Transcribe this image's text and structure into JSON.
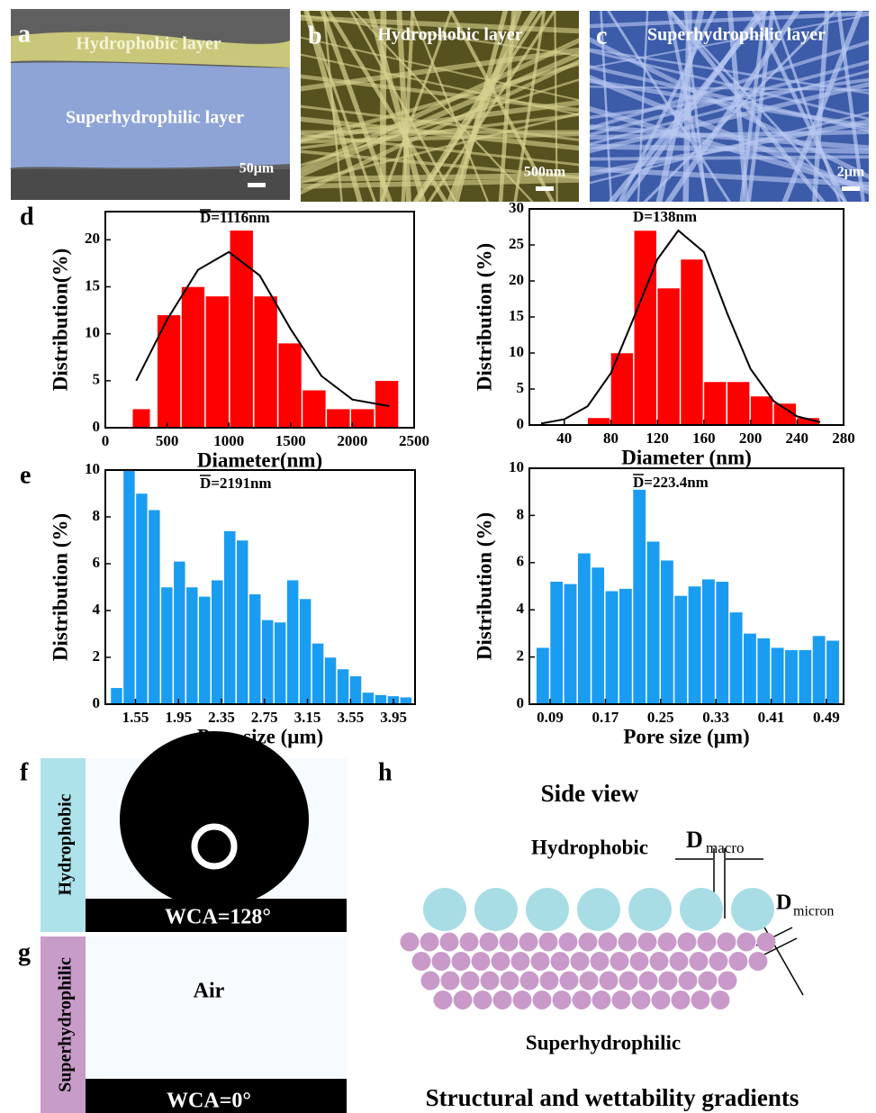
{
  "panel_labels": [
    "a",
    "b",
    "c",
    "d",
    "e",
    "f",
    "g",
    "h"
  ],
  "images": {
    "a": {
      "labels": [
        "Hydrophobic layer",
        "Superhydrophilic layer"
      ],
      "scale_bar": "50μm"
    },
    "b": {
      "labels": [
        "Hydrophobic layer"
      ],
      "scale_bar": "500nm"
    },
    "c": {
      "labels": [
        "Superhydrophilic layer"
      ],
      "scale_bar": "2μm"
    }
  },
  "contact_angle": {
    "f": {
      "side_label": "Hydrophobic",
      "result": "WCA=128°"
    },
    "g": {
      "side_label": "Superhydrophilic",
      "medium": "Air",
      "result": "WCA=0°"
    }
  },
  "schematic": {
    "title": "Side view",
    "top_layer": "Hydrophobic",
    "macro_symbol": "D",
    "macro_subscript": "macro",
    "micron_symbol": "D",
    "micron_subscript": "micron",
    "bottom_layer": "Superhydrophilic",
    "caption": "Structural and wettability gradients"
  },
  "chart_data": [
    {
      "type": "histogram",
      "annotation": "D=1116nm",
      "x_label": "Diameter(nm)",
      "y_label": "Distribution(%)",
      "color": "#ff0000",
      "bins": [
        220,
        370,
        420,
        616,
        812,
        1008,
        1204,
        1400,
        1596,
        1792,
        1988,
        2184,
        2380
      ],
      "values": [
        2,
        0,
        12,
        15,
        14,
        21,
        14,
        9,
        4,
        2,
        2,
        5
      ],
      "fit": {
        "color": "#000000",
        "x": [
          250,
          500,
          750,
          1000,
          1250,
          1500,
          1750,
          2000,
          2300
        ],
        "values": [
          5,
          11.5,
          16.8,
          18.7,
          16.2,
          10.5,
          5.5,
          3,
          2.3
        ]
      },
      "xlim": [
        0,
        2500
      ],
      "xticks": [
        0,
        500,
        1000,
        1500,
        2000,
        2500
      ],
      "ylim": [
        0,
        23
      ],
      "yticks": [
        0,
        5,
        10,
        15,
        20
      ]
    },
    {
      "type": "histogram",
      "annotation": "D=138nm",
      "x_label": "Diameter (nm)",
      "y_label": "Distribution (%)",
      "color": "#ff0000",
      "bins": [
        60,
        80,
        100,
        120,
        140,
        160,
        180,
        200,
        220,
        240,
        260
      ],
      "values": [
        1,
        10,
        27,
        19,
        23,
        6,
        6,
        4,
        3,
        1
      ],
      "fit": {
        "color": "#000000",
        "x": [
          20,
          40,
          60,
          80,
          100,
          120,
          138,
          160,
          180,
          200,
          220,
          240,
          260
        ],
        "values": [
          0.2,
          0.8,
          2.6,
          7.2,
          15,
          23,
          27,
          24,
          15.5,
          7.8,
          3.3,
          1.2,
          0.4
        ]
      },
      "xlim": [
        10,
        280
      ],
      "xticks": [
        40,
        80,
        120,
        160,
        200,
        240,
        280
      ],
      "ylim": [
        0,
        30
      ],
      "yticks": [
        0,
        5,
        10,
        15,
        20,
        25,
        30
      ]
    },
    {
      "type": "histogram",
      "annotation": "D=2191nm",
      "x_label": "Pore size (μm)",
      "y_label": "Distribution (%)",
      "color": "#1a9cf0",
      "bins": [
        1.32,
        1.437,
        1.554,
        1.671,
        1.788,
        1.905,
        2.022,
        2.139,
        2.256,
        2.373,
        2.49,
        2.607,
        2.724,
        2.841,
        2.958,
        3.075,
        3.192,
        3.309,
        3.426,
        3.543,
        3.66,
        3.777,
        3.894,
        4.011,
        4.128
      ],
      "values": [
        0.7,
        10,
        9,
        8.3,
        5,
        6.1,
        5,
        4.6,
        5.3,
        7.4,
        7,
        4.7,
        3.6,
        3.5,
        5.3,
        4.5,
        2.6,
        2,
        1.5,
        1.2,
        0.5,
        0.4,
        0.35,
        0.3
      ],
      "xlim": [
        1.27,
        4.15
      ],
      "xticks": [
        1.55,
        1.95,
        2.35,
        2.75,
        3.15,
        3.55,
        3.95
      ],
      "ylim": [
        0,
        10
      ],
      "yticks": [
        0,
        2,
        4,
        6,
        8,
        10
      ]
    },
    {
      "type": "histogram",
      "annotation": "D=223.4nm",
      "x_label": "Pore size (μm)",
      "y_label": "Distribution (%)",
      "color": "#1a9cf0",
      "bins": [
        0.07,
        0.09,
        0.11,
        0.13,
        0.15,
        0.17,
        0.19,
        0.21,
        0.23,
        0.25,
        0.27,
        0.29,
        0.31,
        0.33,
        0.35,
        0.37,
        0.39,
        0.41,
        0.43,
        0.45,
        0.47,
        0.49,
        0.51
      ],
      "values": [
        2.4,
        5.2,
        5.1,
        6.4,
        5.8,
        4.8,
        4.9,
        9.1,
        6.9,
        6.1,
        4.6,
        5,
        5.3,
        5.2,
        3.9,
        3,
        2.8,
        2.4,
        2.3,
        2.3,
        2.9,
        2.7
      ],
      "xlim": [
        0.06,
        0.515
      ],
      "xticks": [
        0.09,
        0.17,
        0.25,
        0.33,
        0.41,
        0.49
      ],
      "ylim": [
        0,
        10
      ],
      "yticks": [
        0,
        2,
        4,
        6,
        8,
        10
      ]
    }
  ]
}
